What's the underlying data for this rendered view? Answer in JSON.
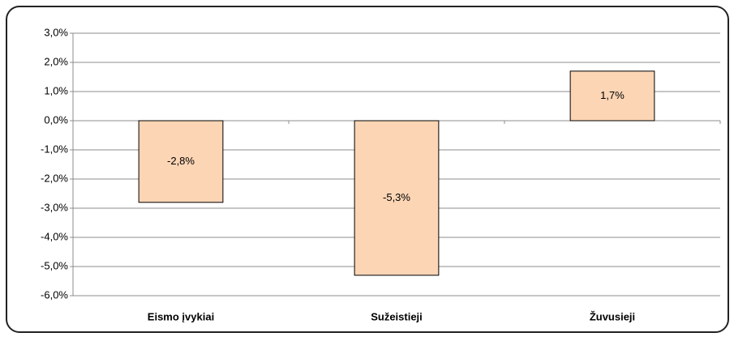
{
  "chart_data": {
    "type": "bar",
    "categories": [
      "Eismo įvykiai",
      "Sužeistieji",
      "Žuvusieji"
    ],
    "values": [
      -2.8,
      -5.3,
      1.7
    ],
    "value_labels": [
      "-2,8%",
      "-5,3%",
      "1,7%"
    ],
    "color": "#fcd5b5",
    "ylim": [
      -6,
      3
    ],
    "yticks": [
      {
        "value": 3,
        "label": "3,0%"
      },
      {
        "value": 2,
        "label": "2,0%"
      },
      {
        "value": 1,
        "label": "1,0%"
      },
      {
        "value": 0,
        "label": "0,0%"
      },
      {
        "value": -1,
        "label": "-1,0%"
      },
      {
        "value": -2,
        "label": "-2,0%"
      },
      {
        "value": -3,
        "label": "-3,0%"
      },
      {
        "value": -4,
        "label": "-4,0%"
      },
      {
        "value": -5,
        "label": "-5,0%"
      },
      {
        "value": -6,
        "label": "-6,0%"
      }
    ],
    "grid": true
  }
}
